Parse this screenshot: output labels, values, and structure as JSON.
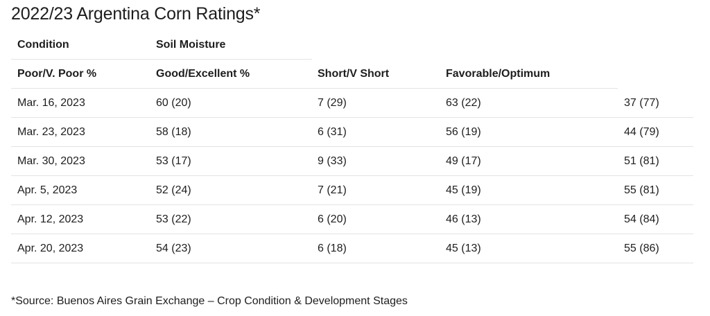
{
  "title": "2022/23 Argentina Corn Ratings*",
  "table": {
    "header_row_1": [
      "Condition",
      "Soil Moisture"
    ],
    "header_row_2": [
      "Poor/V. Poor %",
      "Good/Excellent %",
      "Short/V Short",
      "Favorable/Optimum"
    ],
    "rows": [
      [
        "Mar. 16, 2023",
        "60 (20)",
        "7 (29)",
        "63 (22)",
        "37 (77)"
      ],
      [
        "Mar. 23, 2023",
        "58 (18)",
        "6 (31)",
        "56 (19)",
        "44 (79)"
      ],
      [
        "Mar. 30, 2023",
        "53 (17)",
        "9 (33)",
        "49 (17)",
        "51 (81)"
      ],
      [
        "Apr. 5, 2023",
        "52 (24)",
        "7 (21)",
        "45 (19)",
        "55 (81)"
      ],
      [
        "Apr. 12, 2023",
        "53 (22)",
        "6 (20)",
        "46 (13)",
        "54 (84)"
      ],
      [
        "Apr. 20, 2023",
        "54 (23)",
        "6 (18)",
        "45 (13)",
        "55 (86)"
      ]
    ]
  },
  "footnote": "*Source: Buenos Aires Grain Exchange – Crop Condition & Development Stages"
}
